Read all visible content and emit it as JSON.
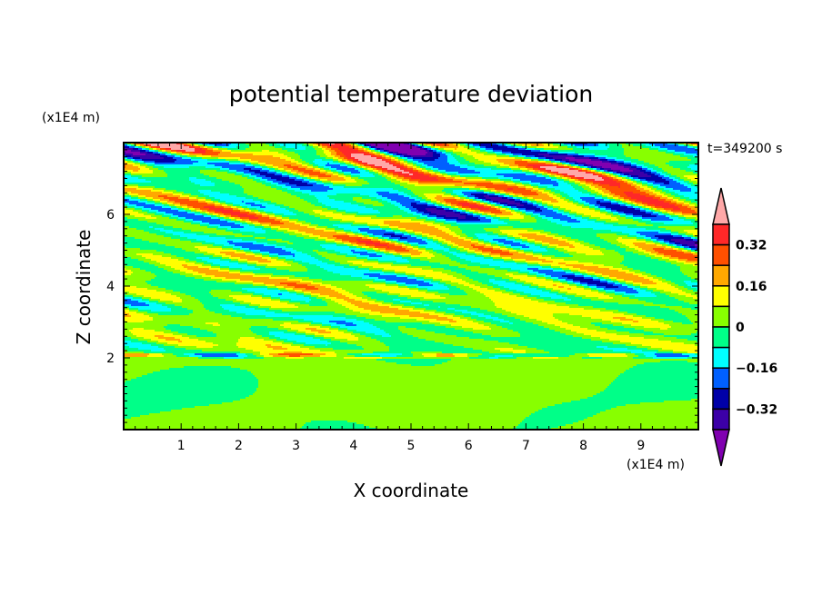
{
  "chart_data": {
    "type": "heatmap",
    "title": "potential temperature deviation",
    "xlabel": "X coordinate",
    "ylabel": "Z coordinate",
    "x_unit": "(x1E4 m)",
    "y_unit": "(x1E4 m)",
    "time_label": "t=349200 s",
    "xlim": [
      0,
      10
    ],
    "ylim": [
      0,
      8
    ],
    "xticks": [
      "1",
      "2",
      "3",
      "4",
      "5",
      "6",
      "7",
      "8",
      "9"
    ],
    "yticks": [
      "2",
      "4",
      "6"
    ],
    "levels": [
      -0.4,
      -0.32,
      -0.24,
      -0.16,
      -0.08,
      0,
      0.08,
      0.16,
      0.24,
      0.32,
      0.4
    ],
    "colors": [
      "#8000b0",
      "#3c00a8",
      "#0000a8",
      "#0060ff",
      "#00ffff",
      "#00ff88",
      "#88ff00",
      "#ffff00",
      "#ffa800",
      "#ff5000",
      "#ff2828",
      "#ffa8a8"
    ],
    "colorbar_labels": [
      "0.32",
      "0.16",
      "0",
      "-0.16",
      "-0.32"
    ],
    "colorbar_label_values": [
      0.32,
      0.16,
      0,
      -0.16,
      -0.32
    ]
  }
}
